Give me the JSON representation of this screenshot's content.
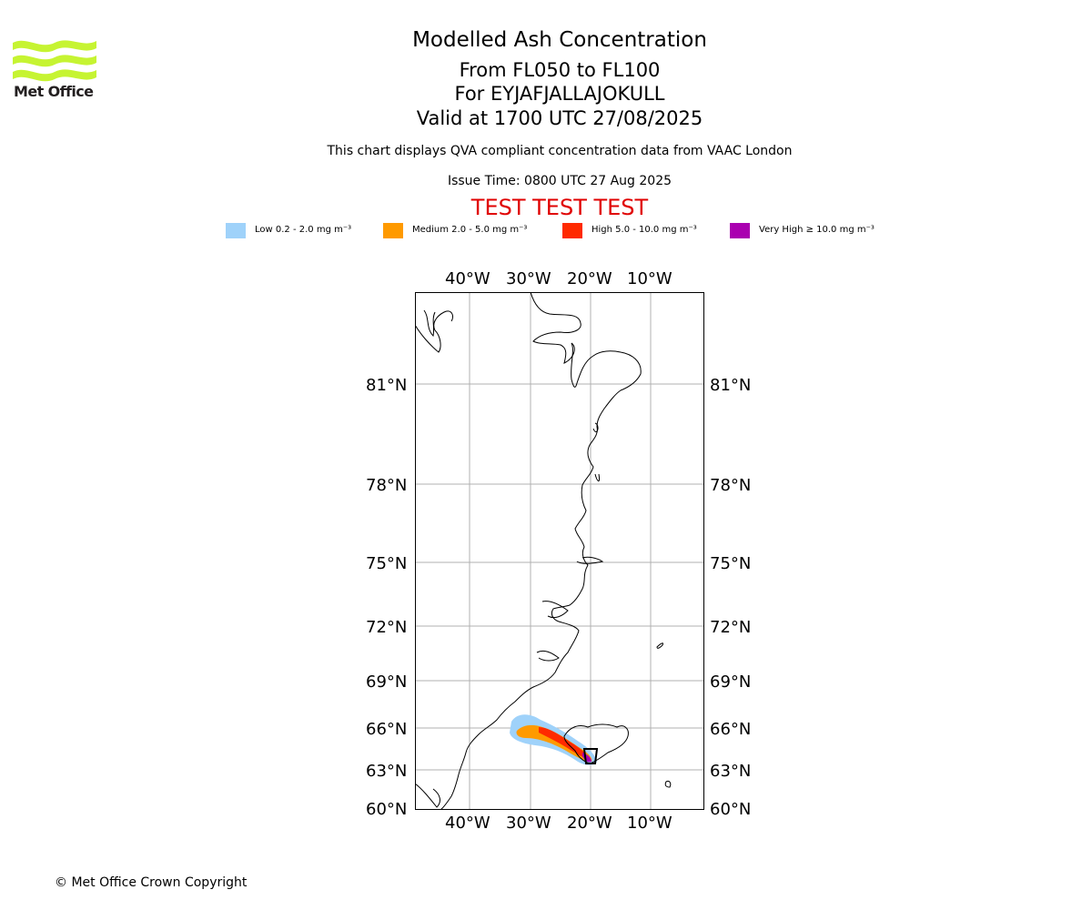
{
  "logo": {
    "text": "Met Office",
    "color": "#c6f432"
  },
  "title": {
    "line1": "Modelled Ash Concentration",
    "line2": "From FL050 to FL100",
    "line3": "For EYJAFJALLAJOKULL",
    "line4": "Valid at 1700 UTC 27/08/2025"
  },
  "subtitle": "This chart displays QVA compliant concentration data from VAAC London",
  "issue_time": "Issue Time: 0800 UTC 27 Aug 2025",
  "test_banner": "TEST TEST TEST",
  "legend": [
    {
      "label": "Low 0.2 - 2.0 mg m⁻³",
      "color": "#9fd2fa"
    },
    {
      "label": "Medium 2.0 - 5.0 mg m⁻³",
      "color": "#ff9a00"
    },
    {
      "label": "High 5.0 - 10.0 mg m⁻³",
      "color": "#ff2a00"
    },
    {
      "label": "Very High ≥ 10.0 mg m⁻³",
      "color": "#aa00b0"
    }
  ],
  "map": {
    "lon_labels": [
      "40°W",
      "30°W",
      "20°W",
      "10°W"
    ],
    "lat_labels": [
      "81°N",
      "78°N",
      "75°N",
      "72°N",
      "69°N",
      "66°N",
      "63°N",
      "60°N"
    ],
    "gridline_color": "#b0b0b0"
  },
  "copyright": "© Met Office Crown Copyright"
}
